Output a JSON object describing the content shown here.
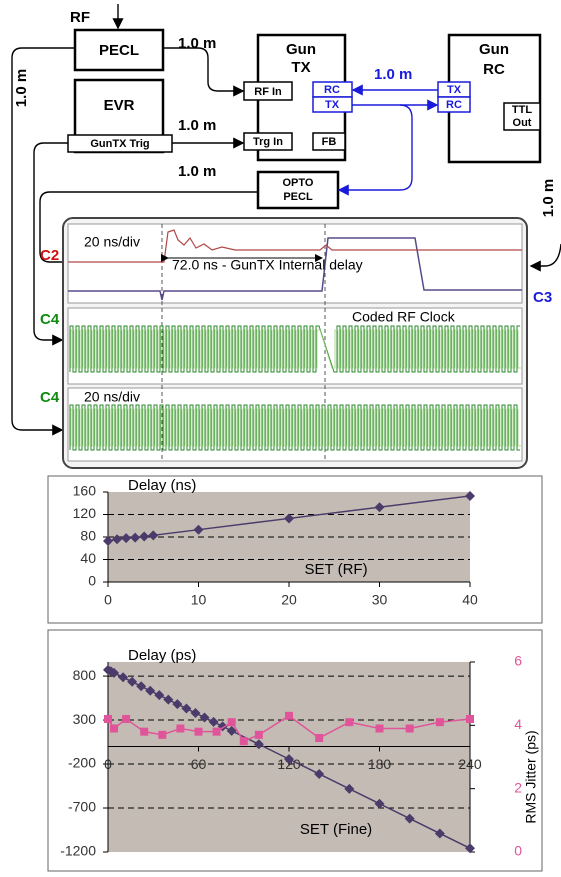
{
  "diagram": {
    "rf": "RF",
    "pecl": "PECL",
    "evr": "EVR",
    "guntx_trig": "GunTX Trig",
    "gun_tx": {
      "line1": "Gun",
      "line2": "TX",
      "rf_in": "RF In",
      "trg_in": "Trg In",
      "rc": "RC",
      "tx": "TX",
      "fb": "FB"
    },
    "gun_rc": {
      "line1": "Gun",
      "line2": "RC",
      "tx": "TX",
      "rc": "RC",
      "ttl_line1": "TTL",
      "ttl_line2": "Out"
    },
    "opto_pecl": {
      "line1": "OPTO",
      "line2": "PECL"
    },
    "cable_labels": [
      "1.0 m",
      "1.0 m",
      "1.0 m",
      "1.0 m",
      "1.0 m",
      "1.0 m"
    ]
  },
  "scope": {
    "channels": [
      "C2",
      "C4",
      "C4",
      "C3"
    ],
    "timebase_top": "20 ns/div",
    "delay_note": "72.0 ns - GunTX Internal delay",
    "coded_clock": "Coded RF Clock",
    "timebase_bottom": "20 ns/div"
  },
  "chart_data": [
    {
      "type": "line",
      "title": "Delay (ns)",
      "x_label": "SET (RF)",
      "xlim": [
        0,
        40
      ],
      "xticks": [
        0,
        10,
        20,
        30,
        40
      ],
      "ylim": [
        0,
        160
      ],
      "yticks": [
        0,
        40,
        80,
        120,
        160
      ],
      "grid": "dashed",
      "plot_background": "#c4bcb4",
      "series": [
        {
          "color": "#4b3b6b",
          "marker": "diamond",
          "x": [
            0,
            1,
            2,
            3,
            4,
            5,
            10,
            20,
            30,
            40
          ],
          "values": [
            73,
            76,
            78,
            79,
            81,
            83,
            93,
            113,
            133,
            153
          ]
        }
      ]
    },
    {
      "type": "line",
      "title": "Delay (ps)",
      "x_label": "SET (Fine)",
      "y2_label": "RMS Jitter (ps)",
      "xlim": [
        0,
        240
      ],
      "xticks": [
        0,
        60,
        120,
        180,
        240
      ],
      "ylim": [
        -1200,
        960
      ],
      "yticks": [
        -1200,
        -700,
        -200,
        300,
        800
      ],
      "y2lim": [
        0,
        6
      ],
      "y2ticks": [
        0,
        2,
        4,
        6
      ],
      "grid": "dashed",
      "zero_line": true,
      "plot_background": "#c4bcb4",
      "series": [
        {
          "color": "#4b3b6b",
          "marker": "diamond",
          "x": [
            0,
            2,
            4,
            10,
            16,
            22,
            28,
            34,
            40,
            46,
            52,
            58,
            64,
            70,
            76,
            82,
            100,
            120,
            140,
            160,
            180,
            200,
            220,
            240
          ],
          "values": [
            870,
            853,
            836,
            786,
            735,
            684,
            633,
            583,
            532,
            481,
            431,
            380,
            329,
            279,
            228,
            177,
            25,
            -144,
            -313,
            -482,
            -651,
            -820,
            -989,
            -1158
          ]
        },
        {
          "color": "#e0559a",
          "marker": "square",
          "axis": "y2",
          "x": [
            0,
            4,
            12,
            24,
            36,
            48,
            60,
            72,
            82,
            90,
            100,
            120,
            140,
            160,
            180,
            200,
            220,
            240
          ],
          "values": [
            4.2,
            3.9,
            4.2,
            3.8,
            3.7,
            3.9,
            3.8,
            3.8,
            4.1,
            3.5,
            3.7,
            4.3,
            3.6,
            4.1,
            3.9,
            3.9,
            4.1,
            4.2
          ]
        }
      ]
    }
  ]
}
